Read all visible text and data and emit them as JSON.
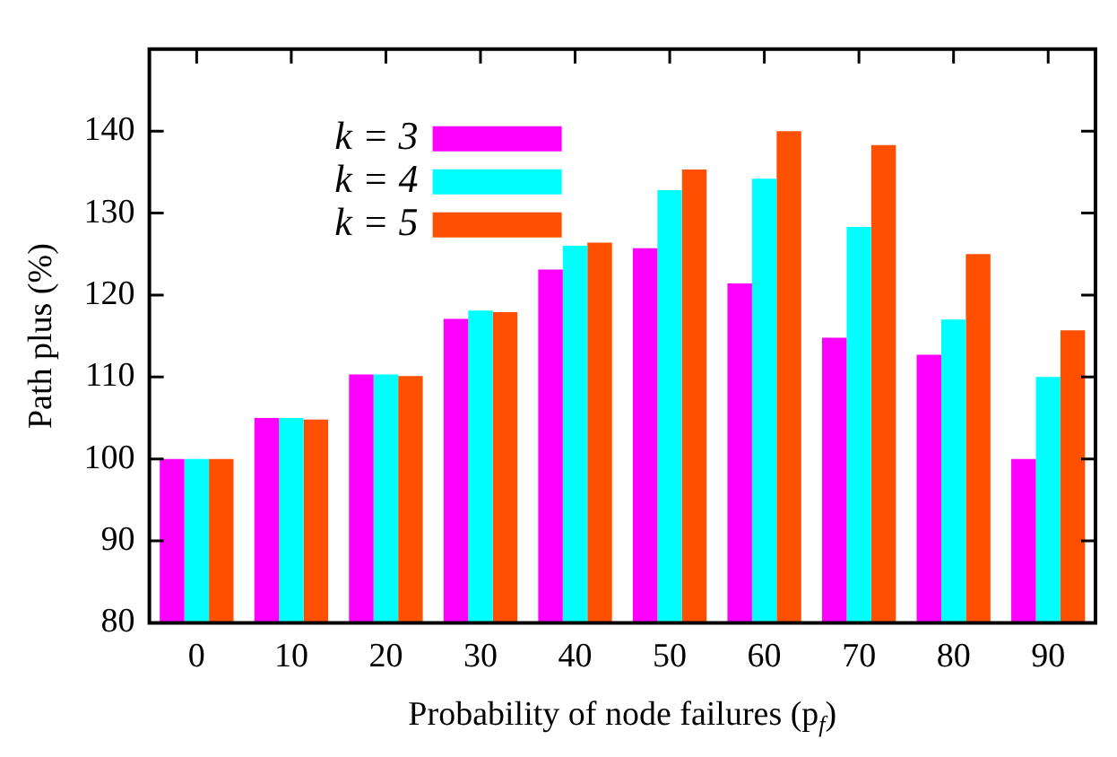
{
  "chart_data": {
    "type": "bar",
    "xlabel": "Probability of node failures (p$_{f}$)",
    "ylabel": "Path plus (%)",
    "categories": [
      "0",
      "10",
      "20",
      "30",
      "40",
      "50",
      "60",
      "70",
      "80",
      "90"
    ],
    "series": [
      {
        "name": "k = 3",
        "color": "#ff00ff",
        "values": [
          100,
          105,
          110.3,
          117.1,
          123.1,
          125.7,
          121.4,
          114.8,
          112.7,
          100
        ]
      },
      {
        "name": "k = 4",
        "color": "#00ffff",
        "values": [
          100,
          105,
          110.3,
          118.1,
          126,
          132.8,
          134.2,
          128.3,
          117,
          110
        ]
      },
      {
        "name": "k = 5",
        "color": "#ff5000",
        "values": [
          100,
          104.8,
          110.1,
          117.9,
          126.4,
          135.3,
          140,
          138.3,
          125,
          115.7
        ]
      }
    ],
    "ylim": [
      80,
      150
    ],
    "yticks": [
      80,
      90,
      100,
      110,
      120,
      130,
      140
    ],
    "legend": "top left",
    "grid": false
  }
}
